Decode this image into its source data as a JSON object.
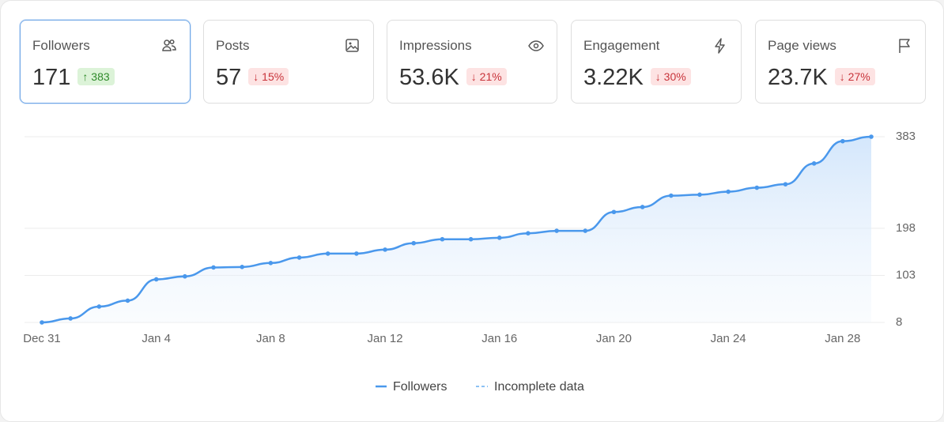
{
  "cards": [
    {
      "label": "Followers",
      "value": "171",
      "delta": "↑ 383",
      "badge": "green",
      "selected": true
    },
    {
      "label": "Posts",
      "value": "57",
      "delta": "↓ 15%",
      "badge": "red",
      "selected": false
    },
    {
      "label": "Impressions",
      "value": "53.6K",
      "delta": "↓ 21%",
      "badge": "red",
      "selected": false
    },
    {
      "label": "Engagement",
      "value": "3.22K",
      "delta": "↓ 30%",
      "badge": "red",
      "selected": false
    },
    {
      "label": "Page views",
      "value": "23.7K",
      "delta": "↓ 27%",
      "badge": "red",
      "selected": false
    }
  ],
  "chart_data": {
    "type": "line",
    "categories": [
      "Dec 31",
      null,
      null,
      null,
      "Jan 4",
      null,
      null,
      null,
      "Jan 8",
      null,
      null,
      null,
      "Jan 12",
      null,
      null,
      null,
      "Jan 16",
      null,
      null,
      null,
      "Jan 20",
      null,
      null,
      null,
      "Jan 24",
      null,
      null,
      null,
      "Jan 28",
      null
    ],
    "series": [
      {
        "name": "Followers",
        "color": "#4a98ec",
        "values": [
          8,
          16,
          40,
          52,
          95,
          101,
          119,
          120,
          128,
          139,
          147,
          147,
          155,
          168,
          176,
          176,
          179,
          188,
          193,
          193,
          231,
          241,
          264,
          266,
          272,
          280,
          287,
          329,
          374,
          383
        ]
      }
    ],
    "incomplete_label": "Incomplete data",
    "ylim": [
      8,
      383
    ],
    "yticks": [
      8,
      103,
      198,
      383
    ],
    "grid": true
  }
}
